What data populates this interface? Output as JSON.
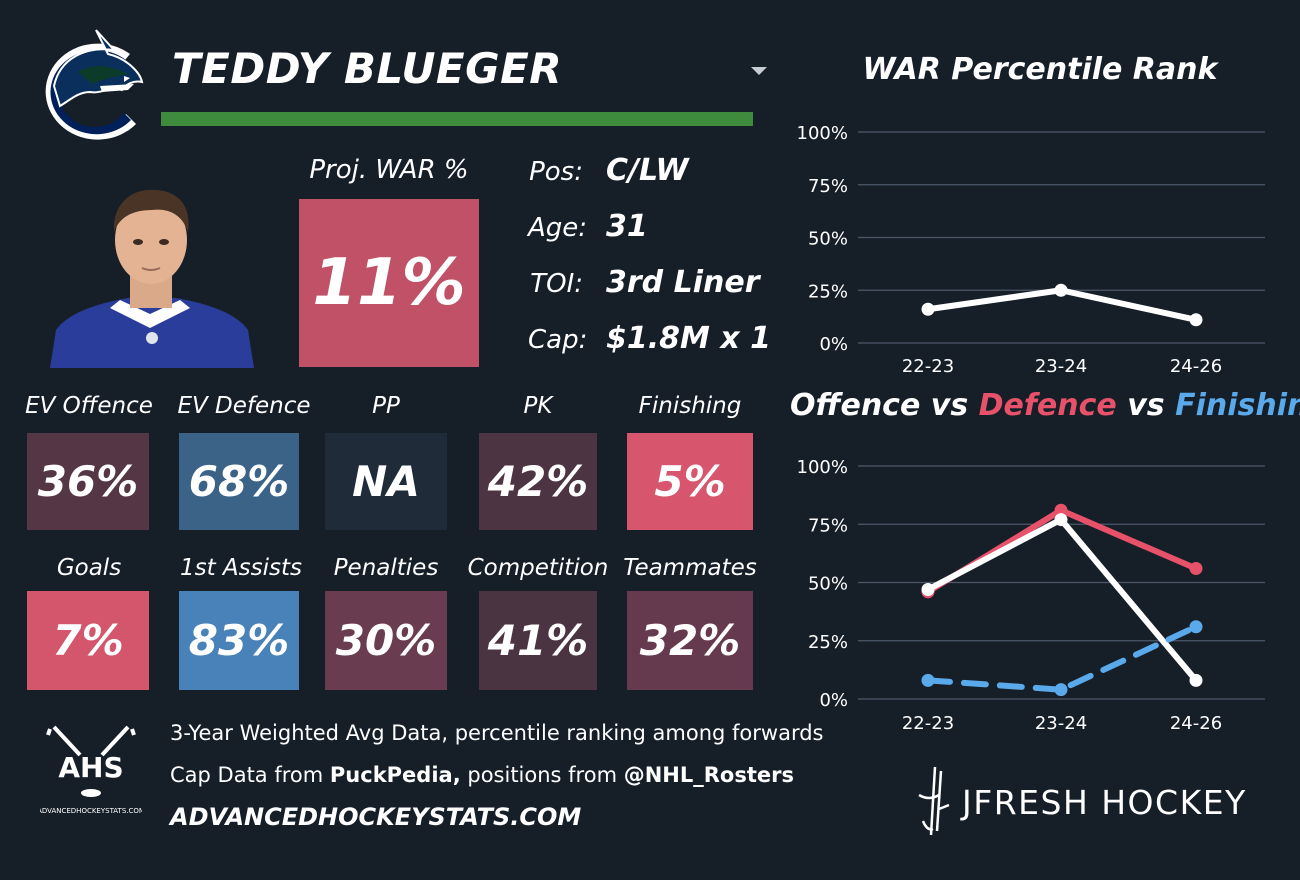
{
  "player": {
    "name": "TEDDY BLUEGER",
    "team_color": "#3e8b3d"
  },
  "proj_war": {
    "label": "Proj. WAR %",
    "value": "11%",
    "color": "#c05166"
  },
  "info": [
    {
      "label": "Pos:",
      "value": "C/LW"
    },
    {
      "label": "Age:",
      "value": "31"
    },
    {
      "label": "TOI:",
      "value": "3rd Liner"
    },
    {
      "label": "Cap:",
      "value": "$1.8M x 1"
    }
  ],
  "metrics_row1": [
    {
      "label": "EV Offence",
      "value": "36%",
      "color": "#553645"
    },
    {
      "label": "EV Defence",
      "value": "68%",
      "color": "#3b6387"
    },
    {
      "label": "PP",
      "value": "NA",
      "color": "#1f2b38"
    },
    {
      "label": "PK",
      "value": "42%",
      "color": "#4c3443"
    },
    {
      "label": "Finishing",
      "value": "5%",
      "color": "#d7566d"
    }
  ],
  "metrics_row2": [
    {
      "label": "Goals",
      "value": "7%",
      "color": "#d3566c"
    },
    {
      "label": "1st Assists",
      "value": "83%",
      "color": "#4882b8"
    },
    {
      "label": "Penalties",
      "value": "30%",
      "color": "#6a3c50"
    },
    {
      "label": "Competition",
      "value": "41%",
      "color": "#4b3442"
    },
    {
      "label": "Teammates",
      "value": "32%",
      "color": "#663a4e"
    }
  ],
  "footer": {
    "line1": "3-Year Weighted Avg Data, percentile ranking among forwards",
    "line2_prefix": "Cap Data from ",
    "line2_bold1": "PuckPedia,",
    "line2_mid": " positions from ",
    "line2_bold2": "@NHL_Rosters",
    "site": "ADVANCEDHOCKEYSTATS.COM",
    "ahs_logo_text": "AHS",
    "ahs_logo_subtext": "ADVANCEDHOCKEYSTATS.COM",
    "brand": "JFRESH HOCKEY"
  },
  "chart_data": [
    {
      "type": "line",
      "title": "WAR Percentile Rank",
      "categories": [
        "22-23",
        "23-24",
        "24-26"
      ],
      "yticks": [
        "0%",
        "25%",
        "50%",
        "75%",
        "100%"
      ],
      "ylim": [
        0,
        100
      ],
      "series": [
        {
          "values": [
            16,
            25,
            11
          ],
          "color": "#ffffff",
          "dashed": false
        }
      ]
    },
    {
      "type": "line",
      "title_parts": [
        {
          "text": "Offence",
          "color": "#ffffff"
        },
        {
          "text": " vs ",
          "color": "#ffffff"
        },
        {
          "text": "Defence",
          "color": "#e8516a"
        },
        {
          "text": " vs ",
          "color": "#ffffff"
        },
        {
          "text": "Finishing",
          "color": "#5aa9ea"
        }
      ],
      "categories": [
        "22-23",
        "23-24",
        "24-26"
      ],
      "yticks": [
        "0%",
        "25%",
        "50%",
        "75%",
        "100%"
      ],
      "ylim": [
        0,
        100
      ],
      "series": [
        {
          "values": [
            46,
            81,
            56
          ],
          "color": "#e8516a",
          "dashed": false
        },
        {
          "values": [
            47,
            77,
            8
          ],
          "color": "#ffffff",
          "dashed": false
        },
        {
          "values": [
            8,
            4,
            31
          ],
          "color": "#5aa9ea",
          "dashed": true
        }
      ]
    }
  ]
}
